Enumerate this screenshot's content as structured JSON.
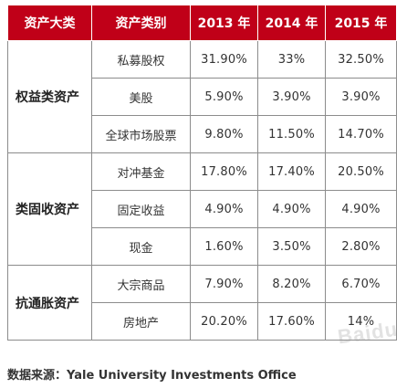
{
  "header": {
    "major_category": "资产大类",
    "asset_class": "资产类别",
    "years": [
      "2013 年",
      "2014 年",
      "2015 年"
    ]
  },
  "groups": [
    {
      "name": "权益类资产",
      "rows": [
        {
          "asset": "私募股权",
          "values": [
            "31.90%",
            "33%",
            "32.50%"
          ]
        },
        {
          "asset": "美股",
          "values": [
            "5.90%",
            "3.90%",
            "3.90%"
          ]
        },
        {
          "asset": "全球市场股票",
          "values": [
            "9.80%",
            "11.50%",
            "14.70%"
          ]
        }
      ]
    },
    {
      "name": "类固收资产",
      "rows": [
        {
          "asset": "对冲基金",
          "values": [
            "17.80%",
            "17.40%",
            "20.50%"
          ]
        },
        {
          "asset": "固定收益",
          "values": [
            "4.90%",
            "4.90%",
            "4.90%"
          ]
        },
        {
          "asset": "现金",
          "values": [
            "1.60%",
            "3.50%",
            "2.80%"
          ]
        }
      ]
    },
    {
      "name": "抗通胀资产",
      "rows": [
        {
          "asset": "大宗商品",
          "values": [
            "7.90%",
            "8.20%",
            "6.70%"
          ]
        },
        {
          "asset": "房地产",
          "values": [
            "20.20%",
            "17.60%",
            "14%"
          ]
        }
      ]
    }
  ],
  "source": "数据来源：Yale University Investments Office",
  "watermark": "Baidu",
  "colors": {
    "header_bg": "#c00018",
    "header_text": "#ffffff",
    "border": "#8c8c8c"
  }
}
